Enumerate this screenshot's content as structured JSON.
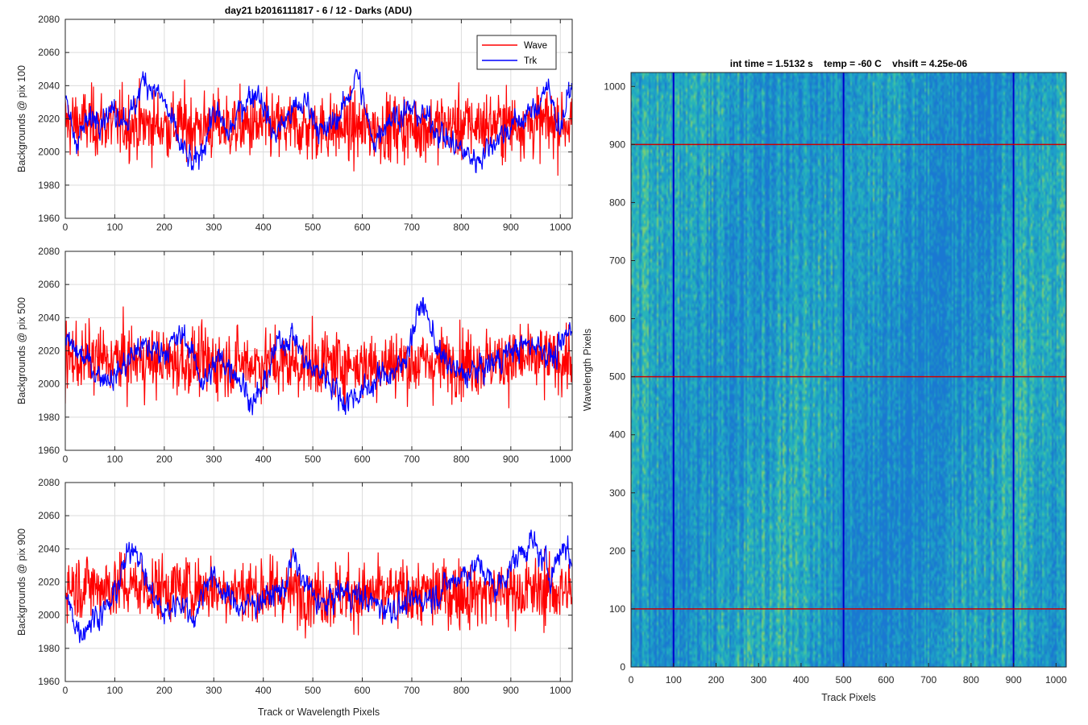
{
  "figure": {
    "title": "day21 b2016111817 - 6 / 12 - Darks (ADU)"
  },
  "chart_data": [
    {
      "type": "line",
      "ylabel": "Backgrounds @ pix 100",
      "xlabel": "",
      "xlim": [
        0,
        1024
      ],
      "ylim": [
        1960,
        2080
      ],
      "xticks": [
        0,
        100,
        200,
        300,
        400,
        500,
        600,
        700,
        800,
        900,
        1000
      ],
      "yticks": [
        1960,
        1980,
        2000,
        2020,
        2040,
        2060,
        2080
      ],
      "grid": true,
      "legend": "top-right",
      "series": [
        {
          "name": "Wave",
          "color": "#ff0000",
          "mean": 2017,
          "noise_amplitude": 13,
          "min": 1975,
          "max": 2068,
          "values_note": "",
          "anchors": [
            [
              0,
              2018
            ],
            [
              200,
              2016
            ],
            [
              400,
              2015
            ],
            [
              600,
              2014
            ],
            [
              800,
              2016
            ],
            [
              1023,
              2018
            ]
          ]
        },
        {
          "name": "Trk",
          "color": "#0000ff",
          "mean": 2020,
          "noise_amplitude": 5,
          "min": 1978,
          "max": 2056,
          "anchors": [
            [
              0,
              2030
            ],
            [
              20,
              2008
            ],
            [
              60,
              2022
            ],
            [
              100,
              2025
            ],
            [
              130,
              2020
            ],
            [
              160,
              2045
            ],
            [
              200,
              2030
            ],
            [
              230,
              2005
            ],
            [
              260,
              1990
            ],
            [
              280,
              2005
            ],
            [
              300,
              2025
            ],
            [
              330,
              2010
            ],
            [
              360,
              2030
            ],
            [
              390,
              2038
            ],
            [
              420,
              2010
            ],
            [
              460,
              2025
            ],
            [
              490,
              2030
            ],
            [
              520,
              2010
            ],
            [
              560,
              2025
            ],
            [
              590,
              2048
            ],
            [
              620,
              2005
            ],
            [
              650,
              2020
            ],
            [
              700,
              2025
            ],
            [
              740,
              2018
            ],
            [
              780,
              2005
            ],
            [
              830,
              1995
            ],
            [
              870,
              2008
            ],
            [
              920,
              2020
            ],
            [
              950,
              2025
            ],
            [
              970,
              2040
            ],
            [
              1000,
              2015
            ],
            [
              1023,
              2040
            ]
          ]
        }
      ]
    },
    {
      "type": "line",
      "ylabel": "Backgrounds @ pix 500",
      "xlabel": "",
      "xlim": [
        0,
        1024
      ],
      "ylim": [
        1960,
        2080
      ],
      "xticks": [
        0,
        100,
        200,
        300,
        400,
        500,
        600,
        700,
        800,
        900,
        1000
      ],
      "yticks": [
        1960,
        1980,
        2000,
        2020,
        2040,
        2060,
        2080
      ],
      "grid": true,
      "series": [
        {
          "name": "Wave",
          "color": "#ff0000",
          "mean": 2014,
          "noise_amplitude": 13,
          "min": 1970,
          "max": 2078,
          "anchors": [
            [
              0,
              2015
            ],
            [
              300,
              2013
            ],
            [
              600,
              2012
            ],
            [
              1023,
              2015
            ]
          ]
        },
        {
          "name": "Trk",
          "color": "#0000ff",
          "mean": 2015,
          "noise_amplitude": 5,
          "min": 1975,
          "max": 2056,
          "anchors": [
            [
              0,
              2025
            ],
            [
              40,
              2015
            ],
            [
              70,
              2005
            ],
            [
              100,
              2005
            ],
            [
              150,
              2022
            ],
            [
              200,
              2020
            ],
            [
              240,
              2030
            ],
            [
              280,
              2000
            ],
            [
              310,
              2015
            ],
            [
              340,
              2010
            ],
            [
              380,
              1988
            ],
            [
              400,
              1998
            ],
            [
              430,
              2025
            ],
            [
              460,
              2030
            ],
            [
              490,
              2010
            ],
            [
              530,
              2005
            ],
            [
              560,
              1990
            ],
            [
              600,
              1995
            ],
            [
              640,
              2005
            ],
            [
              680,
              2010
            ],
            [
              720,
              2050
            ],
            [
              760,
              2015
            ],
            [
              800,
              2005
            ],
            [
              850,
              2010
            ],
            [
              900,
              2020
            ],
            [
              950,
              2025
            ],
            [
              990,
              2015
            ],
            [
              1023,
              2035
            ]
          ]
        }
      ]
    },
    {
      "type": "line",
      "ylabel": "Backgrounds @ pix 900",
      "xlabel": "Track or Wavelength Pixels",
      "xlim": [
        0,
        1024
      ],
      "ylim": [
        1960,
        2080
      ],
      "xticks": [
        0,
        100,
        200,
        300,
        400,
        500,
        600,
        700,
        800,
        900,
        1000
      ],
      "yticks": [
        1960,
        1980,
        2000,
        2020,
        2040,
        2060,
        2080
      ],
      "grid": true,
      "series": [
        {
          "name": "Wave",
          "color": "#ff0000",
          "mean": 2016,
          "noise_amplitude": 13,
          "min": 1967,
          "max": 2069,
          "anchors": [
            [
              0,
              2018
            ],
            [
              300,
              2016
            ],
            [
              600,
              2012
            ],
            [
              1023,
              2015
            ]
          ]
        },
        {
          "name": "Trk",
          "color": "#0000ff",
          "mean": 2012,
          "noise_amplitude": 5,
          "min": 1980,
          "max": 2057,
          "anchors": [
            [
              0,
              2010
            ],
            [
              30,
              1990
            ],
            [
              60,
              2000
            ],
            [
              90,
              2005
            ],
            [
              120,
              2030
            ],
            [
              140,
              2045
            ],
            [
              170,
              2015
            ],
            [
              200,
              2000
            ],
            [
              230,
              2010
            ],
            [
              260,
              1998
            ],
            [
              290,
              2025
            ],
            [
              330,
              2010
            ],
            [
              360,
              2005
            ],
            [
              400,
              2010
            ],
            [
              440,
              2015
            ],
            [
              460,
              2035
            ],
            [
              480,
              2020
            ],
            [
              520,
              2005
            ],
            [
              560,
              2015
            ],
            [
              600,
              2010
            ],
            [
              640,
              2005
            ],
            [
              680,
              2005
            ],
            [
              720,
              2010
            ],
            [
              760,
              2015
            ],
            [
              800,
              2025
            ],
            [
              840,
              2030
            ],
            [
              870,
              2015
            ],
            [
              900,
              2030
            ],
            [
              940,
              2045
            ],
            [
              980,
              2025
            ],
            [
              1010,
              2045
            ],
            [
              1023,
              2030
            ]
          ]
        }
      ]
    },
    {
      "type": "heatmap",
      "title": "int time = 1.5132 s    temp = -60 C    vhsift = 4.25e-06",
      "xlabel": "Track Pixels",
      "ylabel": "Wavelength Pixels",
      "xlim": [
        0,
        1024
      ],
      "ylim": [
        0,
        1024
      ],
      "xticks": [
        0,
        100,
        200,
        300,
        400,
        500,
        600,
        700,
        800,
        900,
        1000
      ],
      "yticks": [
        0,
        100,
        200,
        300,
        400,
        500,
        600,
        700,
        800,
        900,
        1000
      ],
      "colormap": "parula",
      "dominant_color": "#1e9fc4",
      "marker_lines": {
        "vertical_track_pixels": [
          100,
          500,
          900
        ],
        "vertical_color": "#0000cc",
        "horizontal_wavelength_pixels": [
          100,
          500,
          900
        ],
        "horizontal_color": "#cc0000"
      }
    }
  ]
}
